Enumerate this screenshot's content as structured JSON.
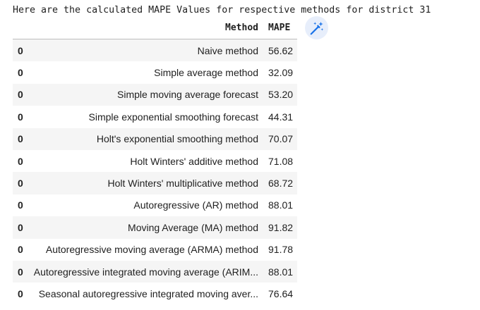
{
  "output": {
    "caption": "Here are the calculated MAPE Values for respective methods for district 31"
  },
  "table": {
    "headers": {
      "index": "",
      "method": "Method",
      "mape": "MAPE"
    },
    "rows": [
      {
        "index": "0",
        "method": "Naive method",
        "mape": "56.62"
      },
      {
        "index": "0",
        "method": "Simple average method",
        "mape": "32.09"
      },
      {
        "index": "0",
        "method": "Simple moving average forecast",
        "mape": "53.20"
      },
      {
        "index": "0",
        "method": "Simple exponential smoothing forecast",
        "mape": "44.31"
      },
      {
        "index": "0",
        "method": "Holt's exponential smoothing method",
        "mape": "70.07"
      },
      {
        "index": "0",
        "method": "Holt Winters' additive method",
        "mape": "71.08"
      },
      {
        "index": "0",
        "method": "Holt Winters' multiplicative method",
        "mape": "68.72"
      },
      {
        "index": "0",
        "method": "Autoregressive (AR) method",
        "mape": "88.01"
      },
      {
        "index": "0",
        "method": "Moving Average (MA) method",
        "mape": "91.82"
      },
      {
        "index": "0",
        "method": "Autoregressive moving average (ARMA) method",
        "mape": "91.78"
      },
      {
        "index": "0",
        "method": "Autoregressive integrated moving average (ARIM...",
        "mape": "88.01"
      },
      {
        "index": "0",
        "method": "Seasonal autoregressive integrated moving aver...",
        "mape": "76.64"
      }
    ]
  },
  "toolbar": {
    "magic_icon": "magic-wand-icon",
    "accent_color": "#1a73e8",
    "button_bg": "#e7eefb"
  },
  "colors": {
    "row_stripe": "#f5f5f5",
    "text": "#212121",
    "header_rule": "#bdbdbd"
  }
}
